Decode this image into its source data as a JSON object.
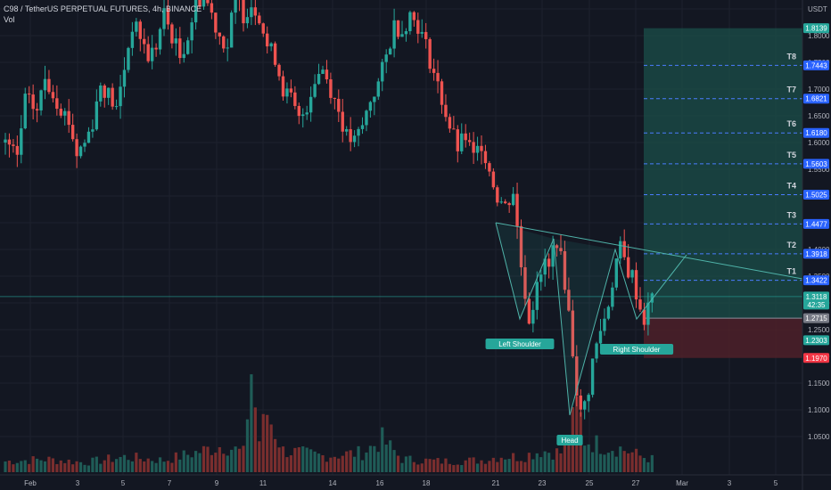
{
  "header": {
    "symbol_line": "C98 / TetherUS PERPETUAL FUTURES, 4h, BINANCE",
    "indicator": "Vol"
  },
  "colors": {
    "background": "#131722",
    "grid": "#1e222d",
    "up": "#26a69a",
    "down": "#ef5350",
    "vol_up": "#1f5c57",
    "vol_down": "#7a2e2e",
    "target_zone": "#1b4f4a",
    "stop_zone": "#4d2029",
    "label_blue": "#2962ff",
    "label_green": "#26a69a",
    "label_red": "#f23645",
    "label_gray": "#787b86"
  },
  "chart_data": {
    "type": "candlestick",
    "title": "C98 / TetherUS PERPETUAL FUTURES, 4h, BINANCE",
    "y_axis": {
      "currency": "USDT",
      "ylim": [
        1.0,
        1.9
      ],
      "ticks": [
        "1.8500",
        "1.8000",
        "1.7500",
        "1.7000",
        "1.6500",
        "1.6000",
        "1.5500",
        "1.5000",
        "1.4500",
        "1.4000",
        "1.3500",
        "1.3000",
        "1.2500",
        "1.2000",
        "1.1500",
        "1.1000",
        "1.0500"
      ]
    },
    "x_axis": {
      "ticks": [
        "Feb",
        "3",
        "5",
        "7",
        "9",
        "11",
        "14",
        "16",
        "18",
        "21",
        "23",
        "25",
        "27",
        "Mar",
        "3",
        "5"
      ]
    },
    "close_path": [
      [
        0,
        1.6
      ],
      [
        3,
        1.57
      ],
      [
        5,
        1.68
      ],
      [
        8,
        1.66
      ],
      [
        10,
        1.72
      ],
      [
        13,
        1.68
      ],
      [
        16,
        1.64
      ],
      [
        18,
        1.58
      ],
      [
        20,
        1.6
      ],
      [
        22,
        1.64
      ],
      [
        24,
        1.71
      ],
      [
        26,
        1.69
      ],
      [
        28,
        1.66
      ],
      [
        30,
        1.74
      ],
      [
        32,
        1.82
      ],
      [
        34,
        1.8
      ],
      [
        36,
        1.76
      ],
      [
        38,
        1.78
      ],
      [
        40,
        1.84
      ],
      [
        42,
        1.8
      ],
      [
        44,
        1.76
      ],
      [
        46,
        1.8
      ],
      [
        48,
        1.86
      ],
      [
        50,
        1.88
      ],
      [
        52,
        1.84
      ],
      [
        54,
        1.8
      ],
      [
        56,
        1.78
      ],
      [
        58,
        1.88
      ],
      [
        60,
        1.84
      ],
      [
        62,
        1.86
      ],
      [
        64,
        1.84
      ],
      [
        66,
        1.78
      ],
      [
        68,
        1.76
      ],
      [
        70,
        1.7
      ],
      [
        72,
        1.68
      ],
      [
        74,
        1.64
      ],
      [
        76,
        1.67
      ],
      [
        78,
        1.72
      ],
      [
        80,
        1.74
      ],
      [
        82,
        1.7
      ],
      [
        84,
        1.66
      ],
      [
        86,
        1.61
      ],
      [
        88,
        1.6
      ],
      [
        90,
        1.63
      ],
      [
        92,
        1.68
      ],
      [
        94,
        1.71
      ],
      [
        96,
        1.76
      ],
      [
        98,
        1.82
      ],
      [
        100,
        1.81
      ],
      [
        102,
        1.84
      ],
      [
        104,
        1.82
      ],
      [
        106,
        1.78
      ],
      [
        108,
        1.73
      ],
      [
        110,
        1.68
      ],
      [
        112,
        1.63
      ],
      [
        114,
        1.59
      ],
      [
        116,
        1.61
      ],
      [
        118,
        1.57
      ],
      [
        120,
        1.6
      ],
      [
        122,
        1.55
      ],
      [
        124,
        1.5
      ],
      [
        126,
        1.48
      ],
      [
        128,
        1.51
      ],
      [
        129,
        1.44
      ],
      [
        130,
        1.37
      ],
      [
        131,
        1.32
      ],
      [
        132,
        1.27
      ],
      [
        133,
        1.3
      ],
      [
        134,
        1.35
      ],
      [
        135,
        1.34
      ],
      [
        136,
        1.38
      ],
      [
        137,
        1.36
      ],
      [
        138,
        1.4
      ],
      [
        139,
        1.42
      ],
      [
        140,
        1.38
      ],
      [
        141,
        1.34
      ],
      [
        142,
        1.28
      ],
      [
        143,
        1.21
      ],
      [
        144,
        1.14
      ],
      [
        145,
        1.09
      ],
      [
        146,
        1.11
      ],
      [
        147,
        1.14
      ],
      [
        148,
        1.19
      ],
      [
        149,
        1.22
      ],
      [
        150,
        1.25
      ],
      [
        151,
        1.27
      ],
      [
        152,
        1.3
      ],
      [
        153,
        1.34
      ],
      [
        154,
        1.38
      ],
      [
        155,
        1.4
      ],
      [
        156,
        1.38
      ],
      [
        157,
        1.36
      ],
      [
        158,
        1.35
      ],
      [
        159,
        1.32
      ],
      [
        160,
        1.29
      ],
      [
        161,
        1.27
      ],
      [
        162,
        1.29
      ],
      [
        163,
        1.311
      ]
    ],
    "volume_path": [
      [
        0,
        0.1
      ],
      [
        10,
        0.12
      ],
      [
        20,
        0.09
      ],
      [
        30,
        0.14
      ],
      [
        40,
        0.11
      ],
      [
        50,
        0.2
      ],
      [
        55,
        0.25
      ],
      [
        60,
        0.18
      ],
      [
        62,
        0.95
      ],
      [
        63,
        0.6
      ],
      [
        64,
        0.3
      ],
      [
        66,
        0.55
      ],
      [
        70,
        0.2
      ],
      [
        80,
        0.15
      ],
      [
        90,
        0.18
      ],
      [
        95,
        0.3
      ],
      [
        100,
        0.12
      ],
      [
        110,
        0.1
      ],
      [
        120,
        0.11
      ],
      [
        125,
        0.15
      ],
      [
        130,
        0.14
      ],
      [
        135,
        0.2
      ],
      [
        140,
        0.18
      ],
      [
        143,
        0.45
      ],
      [
        144,
        0.6
      ],
      [
        145,
        0.5
      ],
      [
        146,
        0.3
      ],
      [
        150,
        0.25
      ],
      [
        155,
        0.22
      ],
      [
        160,
        0.15
      ],
      [
        163,
        0.12
      ]
    ],
    "pattern_labels": {
      "left_shoulder": "Left Shoulder",
      "head": "Head",
      "right_shoulder": "Right Shoulder"
    },
    "pattern_points": {
      "left_shoulder": 1.27,
      "head": 1.09,
      "right_shoulder": 1.27,
      "neck_left": 1.42,
      "neck_right": 1.4
    },
    "targets": [
      {
        "name": "T1",
        "price": "1.3422",
        "value": 1.3422
      },
      {
        "name": "T2",
        "price": "1.3918",
        "value": 1.3918
      },
      {
        "name": "T3",
        "price": "1.4477",
        "value": 1.4477
      },
      {
        "name": "T4",
        "price": "1.5025",
        "value": 1.5025
      },
      {
        "name": "T5",
        "price": "1.5603",
        "value": 1.5603
      },
      {
        "name": "T6",
        "price": "1.6180",
        "value": 1.618
      },
      {
        "name": "T7",
        "price": "1.6821",
        "value": 1.6821
      },
      {
        "name": "T8",
        "price": "1.7443",
        "value": 1.7443
      }
    ],
    "zone_top": {
      "price": "1.8139",
      "value": 1.8139
    },
    "current_price": {
      "price": "1.3118",
      "value": 1.3118,
      "countdown": "42:35"
    },
    "entry_price": {
      "price": "1.2715",
      "value": 1.2715
    },
    "green_label": {
      "price": "1.2303",
      "value": 1.2303
    },
    "stop_price": {
      "price": "1.1970",
      "value": 1.197
    }
  }
}
